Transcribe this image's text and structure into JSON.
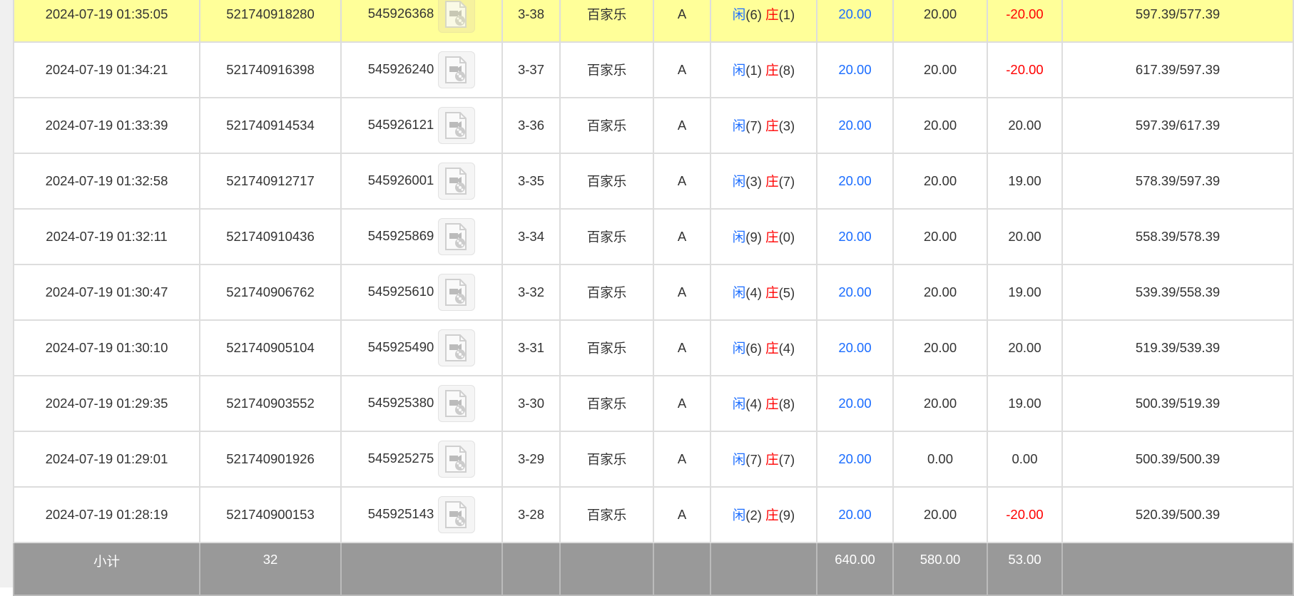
{
  "colors": {
    "highlight": "#ffff99",
    "player": "#1a6cff",
    "banker": "#ff0000",
    "negative": "#ff0000",
    "footer": "#999999"
  },
  "rows": [
    {
      "time": "2024-07-19 01:35:05",
      "bet_id": "521740918280",
      "round_id": "545926368",
      "shoe": "3-38",
      "game": "百家乐",
      "table": "A",
      "player_label": "闲",
      "player_pts": "(6)",
      "banker_label": "庄",
      "banker_pts": "(1)",
      "bet": "20.00",
      "valid": "20.00",
      "win": "-20.00",
      "win_negative": true,
      "balance": "597.39/577.39",
      "highlight": true
    },
    {
      "time": "2024-07-19 01:34:21",
      "bet_id": "521740916398",
      "round_id": "545926240",
      "shoe": "3-37",
      "game": "百家乐",
      "table": "A",
      "player_label": "闲",
      "player_pts": "(1)",
      "banker_label": "庄",
      "banker_pts": "(8)",
      "bet": "20.00",
      "valid": "20.00",
      "win": "-20.00",
      "win_negative": true,
      "balance": "617.39/597.39"
    },
    {
      "time": "2024-07-19 01:33:39",
      "bet_id": "521740914534",
      "round_id": "545926121",
      "shoe": "3-36",
      "game": "百家乐",
      "table": "A",
      "player_label": "闲",
      "player_pts": "(7)",
      "banker_label": "庄",
      "banker_pts": "(3)",
      "bet": "20.00",
      "valid": "20.00",
      "win": "20.00",
      "balance": "597.39/617.39"
    },
    {
      "time": "2024-07-19 01:32:58",
      "bet_id": "521740912717",
      "round_id": "545926001",
      "shoe": "3-35",
      "game": "百家乐",
      "table": "A",
      "player_label": "闲",
      "player_pts": "(3)",
      "banker_label": "庄",
      "banker_pts": "(7)",
      "bet": "20.00",
      "valid": "20.00",
      "win": "19.00",
      "balance": "578.39/597.39"
    },
    {
      "time": "2024-07-19 01:32:11",
      "bet_id": "521740910436",
      "round_id": "545925869",
      "shoe": "3-34",
      "game": "百家乐",
      "table": "A",
      "player_label": "闲",
      "player_pts": "(9)",
      "banker_label": "庄",
      "banker_pts": "(0)",
      "bet": "20.00",
      "valid": "20.00",
      "win": "20.00",
      "balance": "558.39/578.39"
    },
    {
      "time": "2024-07-19 01:30:47",
      "bet_id": "521740906762",
      "round_id": "545925610",
      "shoe": "3-32",
      "game": "百家乐",
      "table": "A",
      "player_label": "闲",
      "player_pts": "(4)",
      "banker_label": "庄",
      "banker_pts": "(5)",
      "bet": "20.00",
      "valid": "20.00",
      "win": "19.00",
      "balance": "539.39/558.39"
    },
    {
      "time": "2024-07-19 01:30:10",
      "bet_id": "521740905104",
      "round_id": "545925490",
      "shoe": "3-31",
      "game": "百家乐",
      "table": "A",
      "player_label": "闲",
      "player_pts": "(6)",
      "banker_label": "庄",
      "banker_pts": "(4)",
      "bet": "20.00",
      "valid": "20.00",
      "win": "20.00",
      "balance": "519.39/539.39"
    },
    {
      "time": "2024-07-19 01:29:35",
      "bet_id": "521740903552",
      "round_id": "545925380",
      "shoe": "3-30",
      "game": "百家乐",
      "table": "A",
      "player_label": "闲",
      "player_pts": "(4)",
      "banker_label": "庄",
      "banker_pts": "(8)",
      "bet": "20.00",
      "valid": "20.00",
      "win": "19.00",
      "balance": "500.39/519.39"
    },
    {
      "time": "2024-07-19 01:29:01",
      "bet_id": "521740901926",
      "round_id": "545925275",
      "shoe": "3-29",
      "game": "百家乐",
      "table": "A",
      "player_label": "闲",
      "player_pts": "(7)",
      "banker_label": "庄",
      "banker_pts": "(7)",
      "bet": "20.00",
      "valid": "0.00",
      "win": "0.00",
      "balance": "500.39/500.39"
    },
    {
      "time": "2024-07-19 01:28:19",
      "bet_id": "521740900153",
      "round_id": "545925143",
      "shoe": "3-28",
      "game": "百家乐",
      "table": "A",
      "player_label": "闲",
      "player_pts": "(2)",
      "banker_label": "庄",
      "banker_pts": "(9)",
      "bet": "20.00",
      "valid": "20.00",
      "win": "-20.00",
      "win_negative": true,
      "balance": "520.39/500.39"
    }
  ],
  "footer": {
    "label": "小计",
    "count": "32",
    "bet_total": "640.00",
    "valid_total": "580.00",
    "win_total": "53.00"
  }
}
